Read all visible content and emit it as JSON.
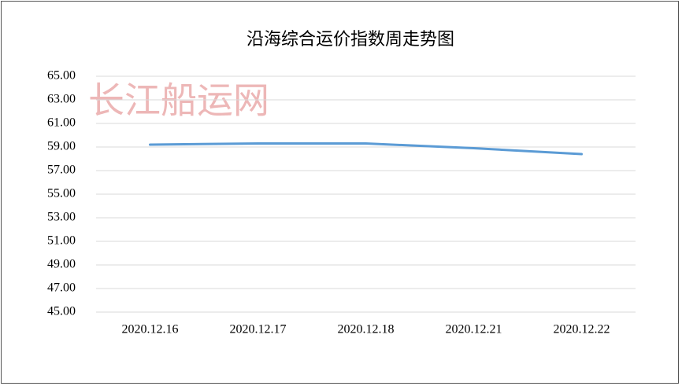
{
  "chart_data": {
    "type": "line",
    "title": "沿海综合运价指数周走势图",
    "watermark": "长江船运网",
    "categories": [
      "2020.12.16",
      "2020.12.17",
      "2020.12.18",
      "2020.12.21",
      "2020.12.22"
    ],
    "series": [
      {
        "name": null,
        "color": "#5b9bd5",
        "values": [
          59.2,
          59.3,
          59.3,
          58.9,
          58.4
        ]
      }
    ],
    "ylim": [
      45,
      65
    ],
    "yticks": [
      {
        "value": 45,
        "label": "45.00"
      },
      {
        "value": 47,
        "label": "47.00"
      },
      {
        "value": 49,
        "label": "49.00"
      },
      {
        "value": 51,
        "label": "51.00"
      },
      {
        "value": 53,
        "label": "53.00"
      },
      {
        "value": 55,
        "label": "55.00"
      },
      {
        "value": 57,
        "label": "57.00"
      },
      {
        "value": 59,
        "label": "59.00"
      },
      {
        "value": 61,
        "label": "61.00"
      },
      {
        "value": 63,
        "label": "63.00"
      },
      {
        "value": 65,
        "label": "65.00"
      }
    ],
    "grid": true
  }
}
